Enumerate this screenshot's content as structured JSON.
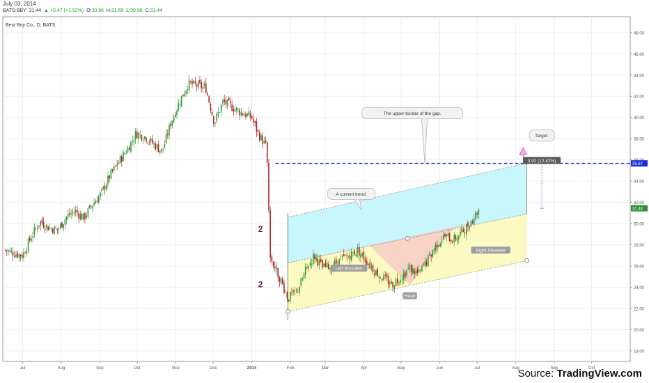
{
  "header": {
    "date": "July 03, 2014",
    "symbol": "BATS:BBY",
    "last": "31.44",
    "change": "▲ +0.47 (+1.52%)",
    "open_label": "O:",
    "open": "30.96",
    "high_label": "H:",
    "high": "31.60",
    "low_label": "L:",
    "low": "30.96",
    "close_label": "C:",
    "close": "31.44"
  },
  "chart_title": "Best Buy Co., D, BATS",
  "source": {
    "prefix": "Source: ",
    "name": "TradingView.com"
  },
  "colors": {
    "up": "#2f9b38",
    "down": "#b02323",
    "guide": "#1f2fd6",
    "channel_blue": "#bdf4fb",
    "channel_yellow": "#fcf9b7",
    "pattern_pink": "#f6c5c5"
  },
  "chart_data": {
    "type": "candlestick",
    "y_axis": {
      "ylim": [
        17,
        49.5
      ],
      "ticks": [
        "18.00",
        "20.00",
        "22.00",
        "24.00",
        "26.00",
        "28.00",
        "30.00",
        "32.00",
        "34.00",
        "36.00",
        "38.00",
        "40.00",
        "42.00",
        "44.00",
        "46.00",
        "48.00"
      ]
    },
    "x_axis": {
      "ticks": [
        "Jul",
        "Aug",
        "Sep",
        "Oct",
        "Nov",
        "Dec",
        "2014",
        "Feb",
        "Mar",
        "Apr",
        "May",
        "Jun",
        "Jul",
        "Aug",
        "Sep",
        "Oct"
      ]
    },
    "price_labels": {
      "last": "31.44",
      "gap_level": "35.67"
    },
    "gap_level": 35.67,
    "close_path": [
      [
        "2013-06-17",
        27.5
      ],
      [
        "2013-06-24",
        27.2
      ],
      [
        "2013-07-01",
        27.0
      ],
      [
        "2013-07-08",
        28.8
      ],
      [
        "2013-07-15",
        30.2
      ],
      [
        "2013-07-22",
        29.6
      ],
      [
        "2013-07-29",
        29.4
      ],
      [
        "2013-08-05",
        30.6
      ],
      [
        "2013-08-12",
        31.2
      ],
      [
        "2013-08-19",
        30.5
      ],
      [
        "2013-08-26",
        31.8
      ],
      [
        "2013-09-02",
        32.8
      ],
      [
        "2013-09-09",
        34.5
      ],
      [
        "2013-09-16",
        35.8
      ],
      [
        "2013-09-23",
        37.0
      ],
      [
        "2013-09-30",
        38.5
      ],
      [
        "2013-10-07",
        38.2
      ],
      [
        "2013-10-14",
        37.5
      ],
      [
        "2013-10-21",
        36.8
      ],
      [
        "2013-10-28",
        39.5
      ],
      [
        "2013-11-04",
        41.5
      ],
      [
        "2013-11-11",
        43.2
      ],
      [
        "2013-11-18",
        43.0
      ],
      [
        "2013-11-25",
        42.8
      ],
      [
        "2013-12-02",
        39.5
      ],
      [
        "2013-12-09",
        41.5
      ],
      [
        "2013-12-16",
        41.0
      ],
      [
        "2013-12-23",
        40.5
      ],
      [
        "2014-01-01",
        40.0
      ],
      [
        "2014-01-06",
        38.5
      ],
      [
        "2014-01-13",
        37.2
      ],
      [
        "2014-01-16",
        26.8
      ],
      [
        "2014-01-23",
        25.0
      ],
      [
        "2014-01-30",
        23.0
      ],
      [
        "2014-02-06",
        23.5
      ],
      [
        "2014-02-13",
        25.5
      ],
      [
        "2014-02-20",
        27.0
      ],
      [
        "2014-02-27",
        25.8
      ],
      [
        "2014-03-06",
        26.0
      ],
      [
        "2014-03-13",
        26.5
      ],
      [
        "2014-03-20",
        27.0
      ],
      [
        "2014-03-27",
        27.5
      ],
      [
        "2014-04-03",
        26.5
      ],
      [
        "2014-04-10",
        25.5
      ],
      [
        "2014-04-17",
        24.8
      ],
      [
        "2014-04-24",
        24.3
      ],
      [
        "2014-05-01",
        25.0
      ],
      [
        "2014-05-08",
        25.8
      ],
      [
        "2014-05-15",
        25.2
      ],
      [
        "2014-05-22",
        26.5
      ],
      [
        "2014-05-29",
        28.0
      ],
      [
        "2014-06-05",
        28.8
      ],
      [
        "2014-06-12",
        28.5
      ],
      [
        "2014-06-19",
        29.2
      ],
      [
        "2014-06-26",
        30.2
      ],
      [
        "2014-07-03",
        31.44
      ]
    ],
    "drawings": {
      "upper_channel": [
        [
          "2014-01-30",
          30.6
        ],
        [
          "2014-08-10",
          35.7
        ]
      ],
      "middle_channel": [
        [
          "2014-01-30",
          26.3
        ],
        [
          "2014-08-10",
          30.9
        ]
      ],
      "lower_channel": [
        [
          "2014-01-30",
          21.7
        ],
        [
          "2014-08-10",
          26.5
        ]
      ],
      "head_shoulders": [
        [
          "2014-02-12",
          26.6
        ],
        [
          "2014-04-05",
          28.0
        ],
        [
          "2014-05-08",
          24.2
        ],
        [
          "2014-06-12",
          29.5
        ],
        [
          "2014-06-28",
          30.1
        ]
      ]
    },
    "annotations": [
      {
        "text": "The upper border of the gap.",
        "date": "2014-05-10",
        "price": 40.4
      },
      {
        "text": "A current trend.",
        "date": "2014-03-22",
        "price": 32.8
      },
      {
        "text": "Target.",
        "date": "2014-08-22",
        "price": 38.3
      },
      {
        "text": "3.92 (12.42%)",
        "date": "2014-08-22",
        "price": 35.95
      },
      {
        "text": "Left Shoulder",
        "date": "2014-03-20",
        "price": 25.8
      },
      {
        "text": "Head",
        "date": "2014-05-08",
        "price": 23.2
      },
      {
        "text": "Right Shoulder",
        "date": "2014-07-12",
        "price": 27.5
      },
      {
        "text": "2",
        "date": "2014-01-08",
        "price": 29.2
      },
      {
        "text": "2",
        "date": "2014-01-08",
        "price": 24.0
      }
    ]
  }
}
